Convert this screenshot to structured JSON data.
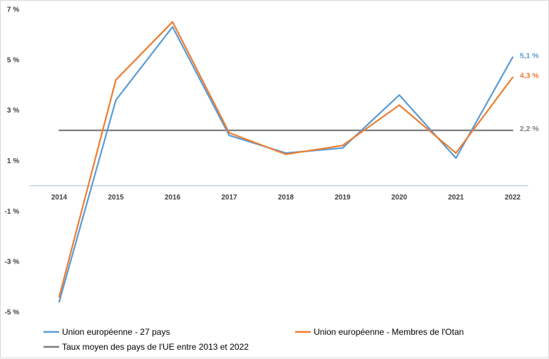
{
  "chart_data": {
    "type": "line",
    "title": "",
    "xlabel": "",
    "ylabel": "",
    "x": [
      "2014",
      "2015",
      "2016",
      "2017",
      "2018",
      "2019",
      "2020",
      "2021",
      "2022"
    ],
    "ylim": [
      -5,
      7
    ],
    "yticks": [
      -5,
      -3,
      -1,
      1,
      3,
      5,
      7
    ],
    "ytick_labels": [
      "-5 %",
      "-3 %",
      "-1 %",
      "1 %",
      "3 %",
      "5 %",
      "7 %"
    ],
    "grid": false,
    "legend_position": "bottom",
    "series": [
      {
        "name": "Union européenne - 27 pays",
        "color": "#5B9BD5",
        "values": [
          -4.6,
          3.4,
          6.3,
          2.0,
          1.3,
          1.5,
          3.6,
          1.1,
          5.1
        ],
        "end_label": "5,1 %"
      },
      {
        "name": "Union européenne - Membres de l'Otan",
        "color": "#ED7D31",
        "values": [
          -4.4,
          4.2,
          6.5,
          2.1,
          1.25,
          1.6,
          3.2,
          1.3,
          4.3
        ],
        "end_label": "4,3 %"
      },
      {
        "name": "Taux moyen des pays de l'UE entre 2013 et 2022",
        "color": "#7F7F7F",
        "values": [
          2.2,
          2.2,
          2.2,
          2.2,
          2.2,
          2.2,
          2.2,
          2.2,
          2.2
        ],
        "end_label": "2,2 %"
      }
    ]
  }
}
